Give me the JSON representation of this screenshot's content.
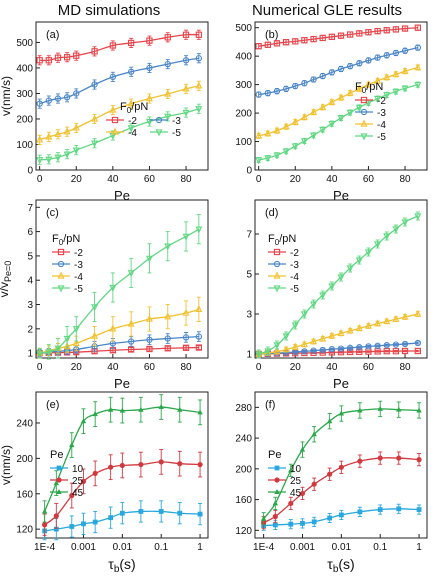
{
  "column_titles": [
    "MD simulations",
    "Numerical GLE results"
  ],
  "colors": {
    "-2": "#e8444a",
    "-3": "#4a86c8",
    "-4": "#f2c12e",
    "-5": "#5fd882",
    "10": "#29a8e0",
    "25": "#d2393f",
    "45": "#2aa84a"
  },
  "chart_data": [
    {
      "panel": "(a)",
      "type": "line",
      "title": "",
      "xlabel": "Pe",
      "ylabel": "v(nm/s)",
      "xlim": [
        -2,
        92
      ],
      "ylim": [
        0,
        580
      ],
      "xticks": [
        "0",
        "20",
        "40",
        "60",
        "80"
      ],
      "xtick_values": [
        0,
        20,
        40,
        60,
        80
      ],
      "yticks": [
        "0",
        "100",
        "200",
        "300",
        "400",
        "500"
      ],
      "ytick_values": [
        0,
        100,
        200,
        300,
        400,
        500
      ],
      "legend": {
        "title": "F0/pN",
        "columns": 2,
        "placement": "bottom-right"
      },
      "x": [
        0,
        5,
        10,
        15,
        20,
        30,
        40,
        50,
        60,
        70,
        80,
        87
      ],
      "series": [
        {
          "name": "-2",
          "marker": "square",
          "values": [
            430,
            430,
            440,
            442,
            448,
            465,
            488,
            498,
            507,
            520,
            530,
            530
          ],
          "err": [
            18,
            18,
            18,
            18,
            18,
            18,
            18,
            18,
            18,
            18,
            18,
            18
          ]
        },
        {
          "name": "-3",
          "marker": "circle",
          "values": [
            260,
            272,
            280,
            285,
            300,
            335,
            365,
            385,
            400,
            415,
            430,
            438
          ],
          "err": [
            18,
            18,
            18,
            18,
            18,
            18,
            18,
            18,
            18,
            18,
            18,
            18
          ]
        },
        {
          "name": "-4",
          "marker": "triangle",
          "values": [
            118,
            130,
            140,
            150,
            165,
            200,
            235,
            260,
            280,
            298,
            318,
            330
          ],
          "err": [
            18,
            18,
            18,
            18,
            18,
            18,
            18,
            18,
            18,
            18,
            18,
            18
          ]
        },
        {
          "name": "-5",
          "marker": "triangle-down",
          "values": [
            40,
            42,
            50,
            62,
            78,
            105,
            135,
            165,
            190,
            210,
            225,
            240
          ],
          "err": [
            18,
            18,
            18,
            18,
            18,
            18,
            18,
            18,
            18,
            18,
            18,
            18
          ]
        }
      ]
    },
    {
      "panel": "(b)",
      "type": "line",
      "title": "",
      "xlabel": "Pe",
      "ylabel": "",
      "xlim": [
        -2,
        92
      ],
      "ylim": [
        0,
        520
      ],
      "xticks": [
        "0",
        "20",
        "40",
        "60",
        "80"
      ],
      "xtick_values": [
        0,
        20,
        40,
        60,
        80
      ],
      "yticks": [
        "0",
        "100",
        "200",
        "300",
        "400",
        "500"
      ],
      "ytick_values": [
        0,
        100,
        200,
        300,
        400,
        500
      ],
      "legend": {
        "title": "F0/pN",
        "columns": 1,
        "placement": "right"
      },
      "x": [
        0,
        5,
        10,
        15,
        20,
        25,
        30,
        35,
        40,
        45,
        50,
        55,
        60,
        65,
        70,
        75,
        80,
        87
      ],
      "series": [
        {
          "name": "-2",
          "marker": "square",
          "values": [
            435,
            440,
            445,
            449,
            452,
            456,
            460,
            464,
            468,
            472,
            476,
            480,
            484,
            488,
            491,
            494,
            497,
            500
          ],
          "err": [
            9,
            9,
            9,
            9,
            9,
            9,
            9,
            9,
            9,
            9,
            9,
            9,
            9,
            9,
            9,
            9,
            9,
            9
          ]
        },
        {
          "name": "-3",
          "marker": "circle",
          "values": [
            265,
            270,
            277,
            285,
            295,
            305,
            318,
            330,
            343,
            355,
            365,
            375,
            385,
            395,
            403,
            411,
            419,
            430
          ],
          "err": [
            9,
            9,
            9,
            9,
            9,
            9,
            9,
            9,
            9,
            9,
            9,
            9,
            9,
            9,
            9,
            9,
            9,
            9
          ]
        },
        {
          "name": "-4",
          "marker": "triangle",
          "values": [
            120,
            128,
            138,
            152,
            168,
            185,
            203,
            220,
            238,
            254,
            270,
            285,
            300,
            313,
            325,
            336,
            347,
            360
          ],
          "err": [
            9,
            9,
            9,
            9,
            9,
            9,
            9,
            9,
            9,
            9,
            9,
            9,
            9,
            9,
            9,
            9,
            9,
            9
          ]
        },
        {
          "name": "-5",
          "marker": "triangle-down",
          "values": [
            35,
            42,
            52,
            66,
            84,
            102,
            122,
            142,
            163,
            183,
            202,
            220,
            236,
            251,
            264,
            276,
            287,
            300
          ],
          "err": [
            9,
            9,
            9,
            9,
            9,
            9,
            9,
            9,
            9,
            9,
            9,
            9,
            9,
            9,
            9,
            9,
            9,
            9
          ]
        }
      ]
    },
    {
      "panel": "(c)",
      "type": "line",
      "title": "",
      "xlabel": "Pe",
      "ylabel": "v/vPe=0",
      "xlim": [
        -2,
        92
      ],
      "ylim": [
        0.8,
        7.3
      ],
      "xticks": [
        "0",
        "20",
        "40",
        "60",
        "80"
      ],
      "xtick_values": [
        0,
        20,
        40,
        60,
        80
      ],
      "yticks": [
        "1",
        "2",
        "3",
        "4",
        "5",
        "6",
        "7"
      ],
      "ytick_values": [
        1,
        2,
        3,
        4,
        5,
        6,
        7
      ],
      "legend": {
        "title": "F0/pN",
        "columns": 1,
        "placement": "top-left"
      },
      "x": [
        0,
        5,
        10,
        15,
        20,
        30,
        40,
        50,
        60,
        70,
        80,
        87
      ],
      "series": [
        {
          "name": "-2",
          "marker": "square",
          "values": [
            1.0,
            1.01,
            1.02,
            1.03,
            1.04,
            1.08,
            1.12,
            1.15,
            1.17,
            1.2,
            1.22,
            1.23
          ],
          "err": [
            0.08,
            0.08,
            0.08,
            0.08,
            0.08,
            0.08,
            0.08,
            0.08,
            0.08,
            0.08,
            0.08,
            0.08
          ]
        },
        {
          "name": "-3",
          "marker": "circle",
          "values": [
            1.0,
            1.04,
            1.08,
            1.1,
            1.15,
            1.28,
            1.4,
            1.48,
            1.55,
            1.6,
            1.65,
            1.68
          ],
          "err": [
            0.15,
            0.15,
            0.15,
            0.15,
            0.15,
            0.2,
            0.2,
            0.2,
            0.2,
            0.2,
            0.2,
            0.2
          ]
        },
        {
          "name": "-4",
          "marker": "triangle",
          "values": [
            1.0,
            1.1,
            1.2,
            1.28,
            1.4,
            1.7,
            2.0,
            2.2,
            2.4,
            2.5,
            2.65,
            2.8
          ],
          "err": [
            0.2,
            0.2,
            0.2,
            0.25,
            0.3,
            0.4,
            0.5,
            0.5,
            0.5,
            0.5,
            0.5,
            0.5
          ]
        },
        {
          "name": "-5",
          "marker": "triangle-down",
          "values": [
            1.0,
            1.05,
            1.2,
            1.6,
            2.0,
            2.9,
            3.7,
            4.3,
            4.9,
            5.4,
            5.8,
            6.1
          ],
          "err": [
            0.2,
            0.3,
            0.4,
            0.5,
            0.5,
            0.6,
            0.6,
            0.6,
            0.6,
            0.6,
            0.6,
            0.6
          ]
        }
      ]
    },
    {
      "panel": "(d)",
      "type": "line",
      "title": "",
      "xlabel": "Pe",
      "ylabel": "",
      "xlim": [
        -2,
        92
      ],
      "ylim": [
        0.8,
        8.7
      ],
      "xticks": [
        "0",
        "20",
        "40",
        "60",
        "80"
      ],
      "xtick_values": [
        0,
        20,
        40,
        60,
        80
      ],
      "yticks": [
        "1",
        "3",
        "5",
        "7"
      ],
      "ytick_values": [
        1,
        3,
        5,
        7
      ],
      "legend": {
        "title": "F0/pN",
        "columns": 1,
        "placement": "top-left"
      },
      "x": [
        0,
        5,
        10,
        15,
        20,
        25,
        30,
        35,
        40,
        45,
        50,
        55,
        60,
        65,
        70,
        75,
        80,
        87
      ],
      "series": [
        {
          "name": "-2",
          "marker": "square",
          "values": [
            1.0,
            1.01,
            1.02,
            1.03,
            1.04,
            1.05,
            1.06,
            1.07,
            1.08,
            1.09,
            1.1,
            1.11,
            1.12,
            1.13,
            1.14,
            1.14,
            1.15,
            1.15
          ],
          "err": [
            0.04,
            0.04,
            0.04,
            0.04,
            0.04,
            0.04,
            0.04,
            0.04,
            0.04,
            0.04,
            0.04,
            0.04,
            0.04,
            0.04,
            0.04,
            0.04,
            0.04,
            0.04
          ]
        },
        {
          "name": "-3",
          "marker": "circle",
          "values": [
            1.0,
            1.02,
            1.04,
            1.07,
            1.1,
            1.13,
            1.17,
            1.2,
            1.24,
            1.27,
            1.31,
            1.34,
            1.38,
            1.41,
            1.44,
            1.47,
            1.5,
            1.55
          ],
          "err": [
            0.05,
            0.05,
            0.05,
            0.05,
            0.05,
            0.05,
            0.05,
            0.05,
            0.05,
            0.05,
            0.05,
            0.05,
            0.05,
            0.05,
            0.05,
            0.05,
            0.05,
            0.05
          ]
        },
        {
          "name": "-4",
          "marker": "triangle",
          "values": [
            1.0,
            1.05,
            1.12,
            1.22,
            1.35,
            1.48,
            1.62,
            1.76,
            1.9,
            2.03,
            2.16,
            2.28,
            2.4,
            2.52,
            2.63,
            2.74,
            2.85,
            3.0
          ],
          "err": [
            0.12,
            0.12,
            0.12,
            0.12,
            0.12,
            0.12,
            0.12,
            0.12,
            0.12,
            0.12,
            0.12,
            0.12,
            0.12,
            0.12,
            0.12,
            0.12,
            0.12,
            0.12
          ]
        },
        {
          "name": "-5",
          "marker": "triangle-down",
          "values": [
            1.0,
            1.15,
            1.45,
            1.9,
            2.45,
            3.0,
            3.5,
            3.95,
            4.4,
            4.85,
            5.3,
            5.7,
            6.1,
            6.5,
            6.9,
            7.25,
            7.6,
            7.9
          ],
          "err": [
            0.2,
            0.2,
            0.2,
            0.2,
            0.2,
            0.2,
            0.2,
            0.2,
            0.2,
            0.2,
            0.2,
            0.2,
            0.2,
            0.2,
            0.2,
            0.2,
            0.2,
            0.2
          ]
        }
      ]
    },
    {
      "panel": "(e)",
      "type": "line",
      "title": "",
      "xscale": "log",
      "xlabel": "τb(s)",
      "ylabel": "v(nm/s)",
      "xlim": [
        6e-05,
        1.6
      ],
      "ylim": [
        110,
        275
      ],
      "xticks": [
        "1E-4",
        "0.001",
        "0.01",
        "0.1",
        "1"
      ],
      "xtick_values": [
        0.0001,
        0.001,
        0.01,
        0.1,
        1
      ],
      "yticks": [
        "120",
        "160",
        "200",
        "240"
      ],
      "ytick_values": [
        120,
        160,
        200,
        240
      ],
      "legend": {
        "title": "Pe",
        "columns": 1,
        "placement": "left"
      },
      "x": [
        0.0001,
        0.0002,
        0.0005,
        0.001,
        0.002,
        0.005,
        0.01,
        0.03,
        0.1,
        0.3,
        1
      ],
      "series": [
        {
          "name": "10",
          "marker": "square",
          "values": [
            118,
            120,
            123,
            126,
            128,
            133,
            138,
            140,
            140,
            138,
            137
          ],
          "err": [
            10,
            12,
            12,
            12,
            12,
            12,
            12,
            12,
            12,
            12,
            12
          ]
        },
        {
          "name": "25",
          "marker": "circle",
          "values": [
            125,
            135,
            158,
            174,
            183,
            190,
            192,
            193,
            196,
            194,
            193
          ],
          "err": [
            12,
            14,
            14,
            14,
            14,
            14,
            14,
            14,
            14,
            14,
            14
          ]
        },
        {
          "name": "45",
          "marker": "triangle",
          "values": [
            140,
            172,
            215,
            242,
            250,
            255,
            254,
            255,
            258,
            255,
            252
          ],
          "err": [
            12,
            14,
            14,
            14,
            14,
            14,
            14,
            14,
            14,
            14,
            14
          ]
        }
      ]
    },
    {
      "panel": "(f)",
      "type": "line",
      "title": "",
      "xscale": "log",
      "xlabel": "τb(s)",
      "ylabel": "",
      "xlim": [
        6e-05,
        1.6
      ],
      "ylim": [
        110,
        300
      ],
      "xticks": [
        "1E-4",
        "0.001",
        "0.01",
        "0.1",
        "1"
      ],
      "xtick_values": [
        0.0001,
        0.001,
        0.01,
        0.1,
        1
      ],
      "yticks": [
        "120",
        "160",
        "200",
        "240",
        "280"
      ],
      "ytick_values": [
        120,
        160,
        200,
        240,
        280
      ],
      "legend": {
        "title": "Pe",
        "columns": 1,
        "placement": "left"
      },
      "x": [
        0.0001,
        0.0002,
        0.0005,
        0.001,
        0.002,
        0.005,
        0.01,
        0.03,
        0.1,
        0.3,
        1
      ],
      "series": [
        {
          "name": "10",
          "marker": "square",
          "values": [
            126,
            127,
            128,
            129,
            131,
            136,
            140,
            144,
            147,
            148,
            147
          ],
          "err": [
            6,
            6,
            6,
            6,
            6,
            6,
            6,
            6,
            6,
            6,
            6
          ]
        },
        {
          "name": "25",
          "marker": "circle",
          "values": [
            130,
            138,
            155,
            168,
            180,
            193,
            202,
            210,
            214,
            214,
            212
          ],
          "err": [
            8,
            8,
            8,
            8,
            8,
            8,
            8,
            8,
            8,
            8,
            8
          ]
        },
        {
          "name": "45",
          "marker": "triangle",
          "values": [
            135,
            155,
            198,
            225,
            245,
            262,
            272,
            276,
            278,
            277,
            276
          ],
          "err": [
            8,
            8,
            8,
            10,
            10,
            10,
            10,
            10,
            10,
            10,
            10
          ]
        }
      ]
    }
  ]
}
